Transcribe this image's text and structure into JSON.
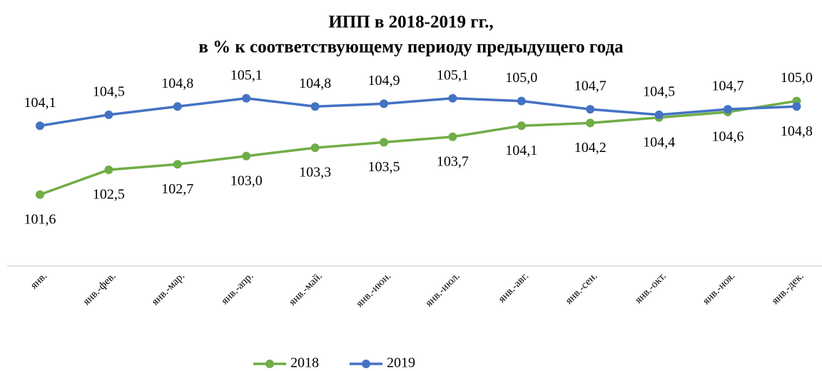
{
  "chart_data": {
    "type": "line",
    "title": [
      "ИПП в 2018-2019 гг.,",
      "в % к соответствующему периоду предыдущего года"
    ],
    "categories": [
      "янв.",
      "янв.-фев.",
      "янв.-мар.",
      "янв.-апр.",
      "янв.-май.",
      "янв.-июн.",
      "янв.-июл.",
      "янв.-авг.",
      "янв.-сен.",
      "янв.-окт.",
      "янв.-ноя.",
      "янв.-дек."
    ],
    "series": [
      {
        "name": "2018",
        "color": "#70ad47",
        "values": [
          101.6,
          102.5,
          102.7,
          103.0,
          103.3,
          103.5,
          103.7,
          104.1,
          104.2,
          104.4,
          104.6,
          105.0
        ],
        "value_labels": [
          "101,6",
          "102,5",
          "102,7",
          "103,0",
          "103,3",
          "103,5",
          "103,7",
          "104,1",
          "104,2",
          "104,4",
          "104,6",
          "105,0"
        ]
      },
      {
        "name": "2019",
        "color": "#4472c4",
        "values": [
          104.1,
          104.5,
          104.8,
          105.1,
          104.8,
          104.9,
          105.1,
          105.0,
          104.7,
          104.5,
          104.7,
          104.8
        ],
        "value_labels": [
          "104,1",
          "104,5",
          "104,8",
          "105,1",
          "104,8",
          "104,9",
          "105,1",
          "105,0",
          "104,7",
          "104,5",
          "104,7",
          "104,8"
        ]
      }
    ],
    "ylim": [
      99,
      106
    ],
    "legend": "bottom"
  }
}
